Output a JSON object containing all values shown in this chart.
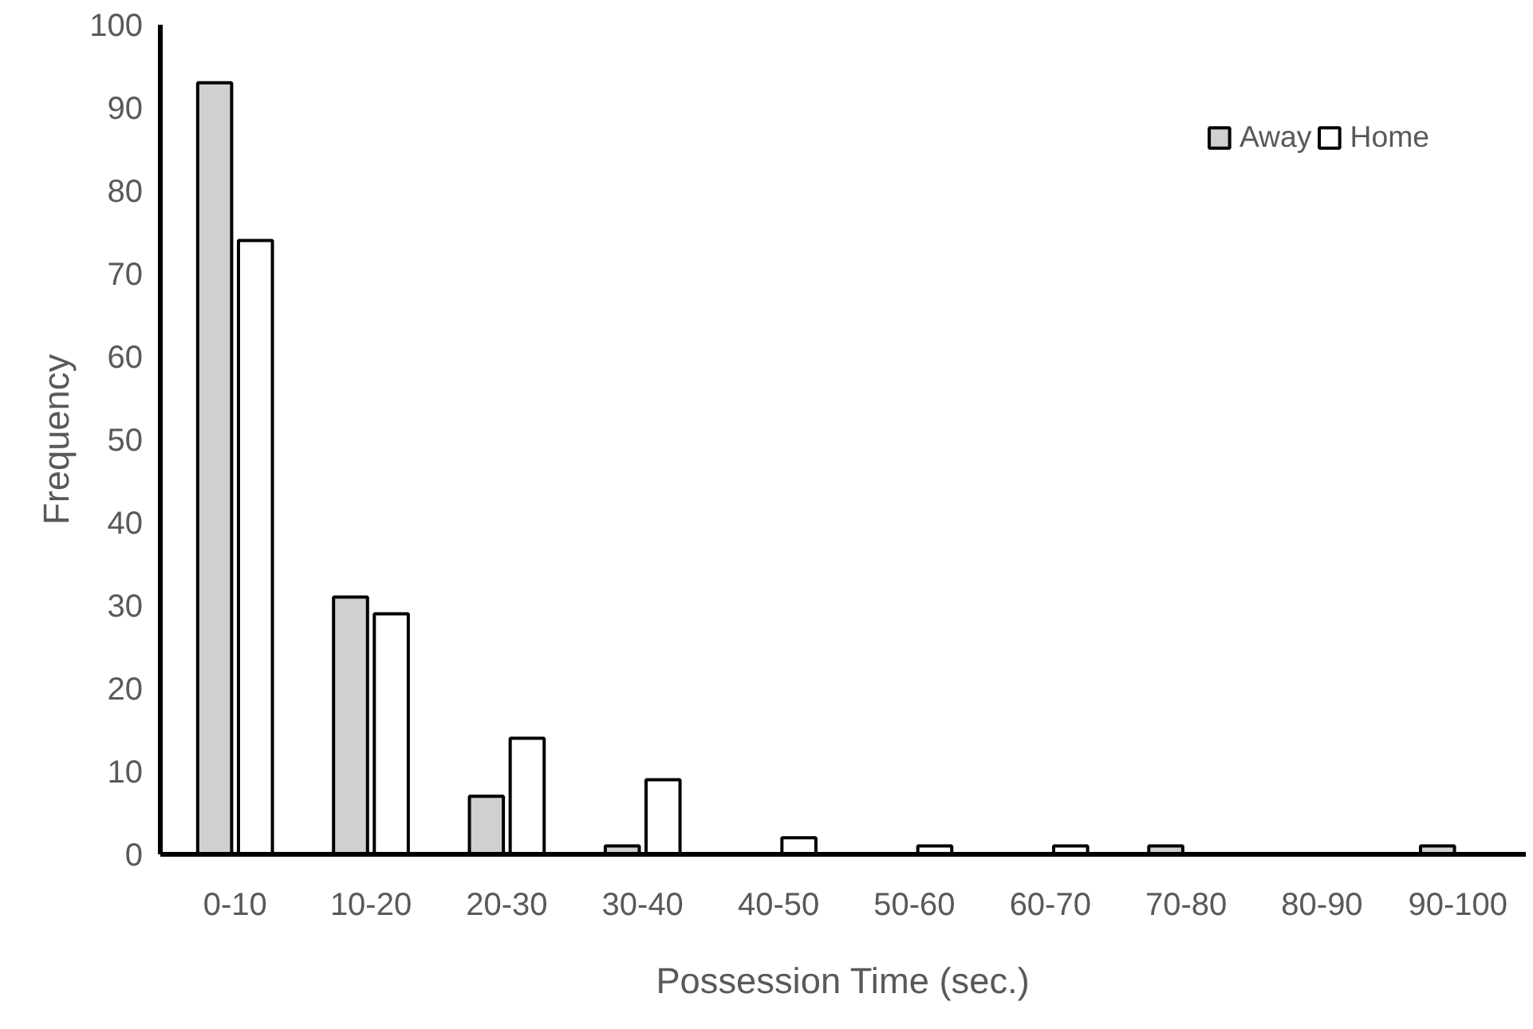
{
  "chart_data": {
    "type": "bar",
    "xlabel": "Possession Time (sec.)",
    "ylabel": "Frequency",
    "categories": [
      "0-10",
      "10-20",
      "20-30",
      "30-40",
      "40-50",
      "50-60",
      "60-70",
      "70-80",
      "80-90",
      "90-100"
    ],
    "series": [
      {
        "name": "Away",
        "color": "#d0d0d0",
        "values": [
          93,
          31,
          7,
          1,
          0,
          0,
          0,
          1,
          0,
          1
        ]
      },
      {
        "name": "Home",
        "color": "#ffffff",
        "values": [
          74,
          29,
          14,
          9,
          2,
          1,
          1,
          0,
          0,
          0
        ]
      }
    ],
    "ylim": [
      0,
      100
    ],
    "yticks": [
      0,
      10,
      20,
      30,
      40,
      50,
      60,
      70,
      80,
      90,
      100
    ],
    "grid": false,
    "legend": "top right"
  }
}
